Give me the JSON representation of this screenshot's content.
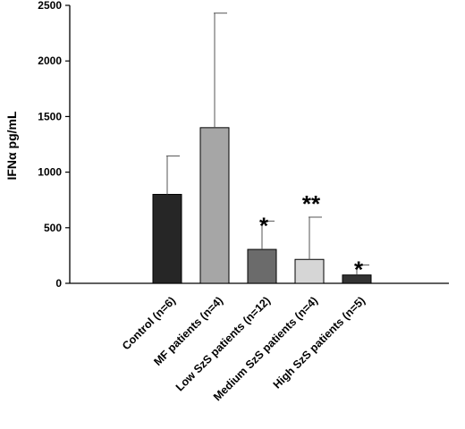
{
  "chart_data": {
    "type": "bar",
    "title": "",
    "xlabel": "",
    "ylabel": "IFNα pg/mL",
    "ylim": [
      0,
      2500
    ],
    "yticks": [
      0,
      500,
      1000,
      1500,
      2000,
      2500
    ],
    "grid": false,
    "categories": [
      "Control (n=6)",
      "MF patients (n=4)",
      "Low SzS patients (n=12)",
      "Medium SzS patients (n=4)",
      "High SzS patients (n=5)"
    ],
    "values": [
      800,
      1400,
      305,
      215,
      75
    ],
    "errors": [
      345,
      1030,
      255,
      380,
      90
    ],
    "significance": [
      "",
      "",
      "*",
      "**",
      "*"
    ],
    "colors": [
      "#262626",
      "#a6a6a6",
      "#6b6b6b",
      "#d6d6d6",
      "#333333"
    ]
  }
}
